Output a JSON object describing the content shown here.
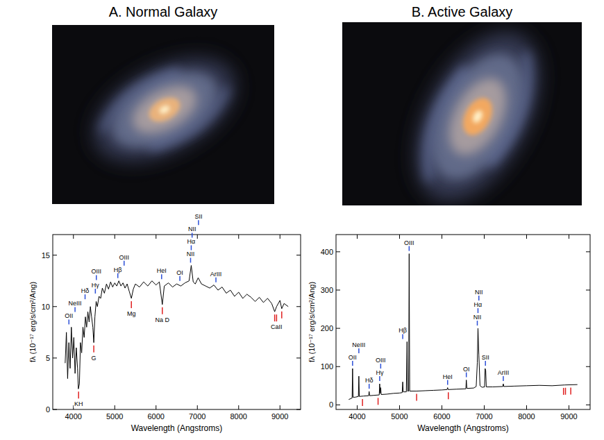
{
  "chart_data": [
    {
      "type": "line",
      "title": "A. Normal Galaxy",
      "x_label": "Wavelength (Angstroms)",
      "y_label": "fλ (10⁻¹⁷ erg/s/cm²/Ang)",
      "x": [
        3800,
        3830,
        3860,
        3890,
        3920,
        3950,
        3980,
        4010,
        4040,
        4070,
        4100,
        4120,
        4145,
        4170,
        4200,
        4230,
        4260,
        4290,
        4320,
        4350,
        4380,
        4410,
        4440,
        4470,
        4493,
        4520,
        4550,
        4580,
        4620,
        4660,
        4700,
        4750,
        4800,
        4850,
        4900,
        4950,
        5000,
        5050,
        5100,
        5150,
        5200,
        5250,
        5300,
        5350,
        5403,
        5450,
        5500,
        5600,
        5700,
        5800,
        5900,
        6000,
        6080,
        6152,
        6200,
        6300,
        6400,
        6500,
        6600,
        6700,
        6800,
        6852,
        6900,
        6950,
        7020,
        7100,
        7200,
        7300,
        7400,
        7500,
        7600,
        7700,
        7800,
        7900,
        8000,
        8100,
        8200,
        8300,
        8400,
        8500,
        8600,
        8700,
        8800,
        8872,
        8918,
        9000,
        9043,
        9100,
        9200
      ],
      "series": [
        {
          "color": "#000000",
          "values": [
            4.5,
            7.5,
            3.0,
            6.5,
            4.0,
            8.0,
            5.0,
            7.0,
            3.5,
            6.0,
            4.0,
            2.0,
            2.5,
            6.5,
            5.5,
            8.0,
            7.0,
            9.0,
            8.0,
            9.5,
            8.5,
            10.0,
            9.0,
            8.0,
            6.5,
            9.0,
            10.5,
            10.0,
            11.0,
            10.8,
            11.8,
            11.3,
            12.2,
            11.7,
            12.4,
            11.9,
            12.3,
            12.0,
            12.5,
            12.0,
            12.3,
            11.8,
            12.2,
            11.5,
            10.8,
            11.7,
            12.2,
            11.9,
            12.4,
            12.0,
            12.5,
            12.1,
            12.4,
            10.2,
            12.0,
            12.3,
            11.9,
            12.2,
            12.0,
            12.3,
            12.5,
            14.0,
            12.4,
            12.2,
            12.8,
            12.2,
            12.0,
            11.8,
            12.1,
            11.6,
            11.9,
            11.3,
            11.6,
            11.0,
            11.4,
            10.8,
            11.2,
            10.9,
            10.5,
            10.9,
            10.4,
            10.8,
            10.3,
            9.5,
            10.0,
            10.6,
            9.8,
            10.3,
            10.0
          ]
        }
      ],
      "xlim": [
        3500,
        9500
      ],
      "xticks": [
        4000,
        5000,
        6000,
        7000,
        8000,
        9000
      ],
      "ylim": [
        0,
        17
      ],
      "yticks": [
        0,
        5,
        10,
        15
      ],
      "emission_lines": [
        {
          "label": "OII",
          "x": 3891
        },
        {
          "label": "NeIII",
          "x": 4039
        },
        {
          "label": "Hδ",
          "x": 4282
        },
        {
          "label": "Hγ",
          "x": 4531
        },
        {
          "label": "OIII",
          "x": 4555
        },
        {
          "label": "Hβ",
          "x": 5075
        },
        {
          "label": "OIII",
          "x": 5227
        },
        {
          "label": "HeI",
          "x": 6135
        },
        {
          "label": "OI",
          "x": 6577
        },
        {
          "label": "NII",
          "x": 6836
        },
        {
          "label": "Hα",
          "x": 6852
        },
        {
          "label": "NII",
          "x": 6873
        },
        {
          "label": "SII",
          "x": 7028
        },
        {
          "label": "ArIII",
          "x": 7450
        }
      ],
      "absorption_lines": [
        {
          "label": "KH",
          "x": 4125
        },
        {
          "label": "G",
          "x": 4493
        },
        {
          "label": "Mg",
          "x": 5403
        },
        {
          "label": "Na D",
          "x": 6152
        },
        {
          "x": 8872
        },
        {
          "label": "CaII",
          "x": 8918
        },
        {
          "x": 9043
        }
      ]
    },
    {
      "type": "line",
      "title": "B. Active Galaxy",
      "x_label": "Wavelength (Angstroms)",
      "y_label": "fλ (10⁻¹⁷ erg/s/cm²/Ang)",
      "x": [
        3800,
        3880,
        3891,
        3902,
        3950,
        4028,
        4039,
        4050,
        4150,
        4270,
        4282,
        4294,
        4400,
        4520,
        4531,
        4543,
        4555,
        4567,
        4700,
        4850,
        5000,
        5063,
        5075,
        5087,
        5160,
        5177,
        5190,
        5215,
        5227,
        5240,
        5400,
        5600,
        5800,
        6000,
        6122,
        6135,
        6148,
        6350,
        6565,
        6577,
        6590,
        6750,
        6810,
        6836,
        6852,
        6873,
        6900,
        6950,
        7008,
        7020,
        7035,
        7048,
        7200,
        7438,
        7450,
        7462,
        7700,
        8000,
        8300,
        8600,
        8900,
        9200
      ],
      "series": [
        {
          "color": "#000000",
          "values": [
            14,
            18,
            95,
            20,
            20,
            22,
            75,
            22,
            23,
            24,
            35,
            24,
            25,
            26,
            55,
            30,
            45,
            27,
            28,
            30,
            31,
            32,
            60,
            34,
            34,
            165,
            36,
            36,
            395,
            36,
            36,
            37,
            38,
            39,
            40,
            45,
            40,
            41,
            42,
            65,
            43,
            44,
            48,
            110,
            200,
            130,
            50,
            46,
            47,
            95,
            90,
            47,
            47,
            48,
            55,
            48,
            49,
            50,
            51,
            50,
            52,
            53
          ]
        }
      ],
      "xlim": [
        3500,
        9500
      ],
      "xticks": [
        4000,
        5000,
        6000,
        7000,
        8000,
        9000
      ],
      "ylim": [
        -12,
        445
      ],
      "yticks": [
        0,
        100,
        200,
        300,
        400
      ],
      "emission_lines": [
        {
          "label": "OII",
          "x": 3891
        },
        {
          "label": "NeIII",
          "x": 4039
        },
        {
          "label": "Hδ",
          "x": 4282
        },
        {
          "label": "Hγ",
          "x": 4531
        },
        {
          "label": "OIII",
          "x": 4555
        },
        {
          "label": "Hβ",
          "x": 5075
        },
        {
          "label": "OIII",
          "x": 5227
        },
        {
          "label": "HeI",
          "x": 6135
        },
        {
          "label": "OI",
          "x": 6577
        },
        {
          "label": "NII",
          "x": 6836
        },
        {
          "label": "Hα",
          "x": 6852
        },
        {
          "label": "NII",
          "x": 6873
        },
        {
          "label": "SII",
          "x": 7028
        },
        {
          "label": "ArIII",
          "x": 7450
        }
      ],
      "absorption_lines": [
        {
          "x": 4125
        },
        {
          "x": 4493
        },
        {
          "x": 5403
        },
        {
          "x": 6152
        },
        {
          "x": 8872
        },
        {
          "x": 8918
        },
        {
          "x": 9043
        }
      ]
    }
  ]
}
